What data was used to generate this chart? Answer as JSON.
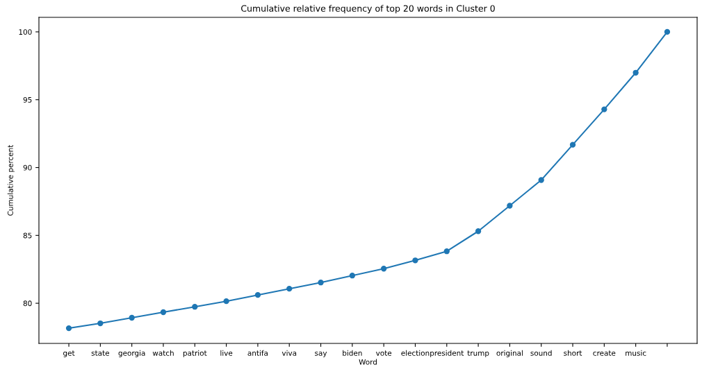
{
  "chart_data": {
    "type": "line",
    "title": "Cumulative relative frequency of top 20 words in Cluster 0",
    "xlabel": "Word",
    "ylabel": "Cumulative percent",
    "categories": [
      "get",
      "state",
      "georgia",
      "watch",
      "patriot",
      "live",
      "antifa",
      "viva",
      "say",
      "biden",
      "vote",
      "election",
      "president",
      "trump",
      "original",
      "sound",
      "short",
      "create",
      "music",
      null
    ],
    "series": [
      {
        "color": "#1f77b4",
        "values": [
          78.16,
          78.52,
          78.93,
          79.34,
          79.74,
          80.15,
          80.61,
          81.07,
          81.53,
          82.04,
          82.55,
          83.16,
          83.83,
          85.31,
          87.19,
          89.08,
          91.68,
          94.29,
          96.99,
          100
        ]
      }
    ],
    "ylim": [
      77.04,
      101.07
    ],
    "yticks": [
      80,
      85,
      90,
      95,
      100
    ],
    "marker": "circle",
    "line_style": "solid",
    "grid": false,
    "legend": false
  }
}
